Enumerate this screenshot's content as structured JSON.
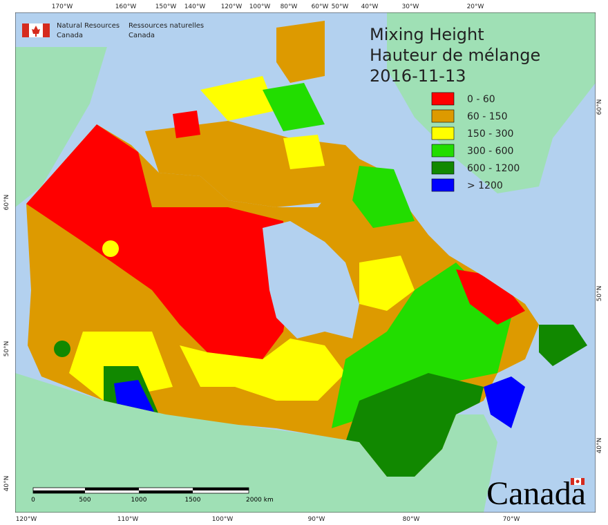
{
  "title": [
    "Mixing Height",
    "Hauteur de mélange",
    "2016-11-13"
  ],
  "agency": {
    "en": [
      "Natural Resources",
      "Canada"
    ],
    "fr": [
      "Ressources naturelles",
      "Canada"
    ]
  },
  "legend": [
    {
      "label": "0 - 60",
      "color": "#ff0000"
    },
    {
      "label": "60 - 150",
      "color": "#dd9a00"
    },
    {
      "label": "150 - 300",
      "color": "#ffff00"
    },
    {
      "label": "300 - 600",
      "color": "#22dd00"
    },
    {
      "label": "600 - 1200",
      "color": "#118800"
    },
    {
      "label": "> 1200",
      "color": "#0000ff"
    }
  ],
  "top_axis_labels": [
    "170°W",
    "160°W",
    "150°W",
    "140°W",
    "120°W",
    "100°W",
    "80°W",
    "60°W",
    "50°W",
    "40°W",
    "30°W",
    "20°W"
  ],
  "bottom_axis_labels": [
    "120°W",
    "110°W",
    "100°W",
    "90°W",
    "80°W",
    "70°W"
  ],
  "left_axis_labels": [
    "60°N",
    "50°N",
    "40°N"
  ],
  "right_axis_labels": [
    "60°N",
    "50°N",
    "40°N"
  ],
  "scale_bar_labels": [
    "0",
    "500",
    "1000",
    "1500",
    "2000 km"
  ],
  "wordmark": "Canada"
}
